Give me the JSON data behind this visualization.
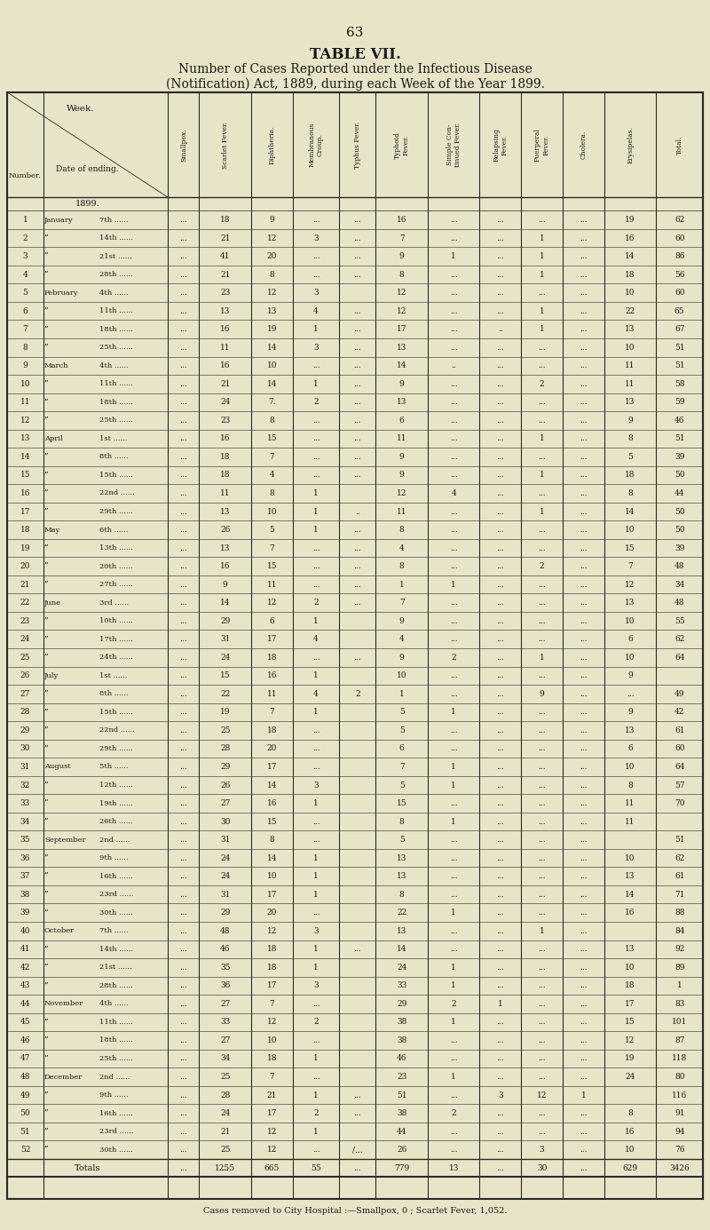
{
  "page_number": "63",
  "title_line1": "TABLE VII.",
  "title_line2": "Number of Cases Reported under the Infectious Disease",
  "title_line3": "(Notification) Act, 1889, during each Week of the Year 1899.",
  "footer": "Cases removed to City Hospital :—Smallpox, 0 ; Scarlet Fever, 1,052.",
  "col_headers": [
    "Number.",
    "Date of ending.",
    "Smallpox.",
    "Scarlet Fever.",
    "Diphtheria.",
    "Membranous Croup.",
    "Typhus Fever.",
    "Typhoid Fever.",
    "Simple Con-\ntinued Fever.",
    "Relapsing\nFever.",
    "Puerperal\nFever.",
    "Cholera.",
    "Erysipelas.",
    "Total."
  ],
  "rows": [
    [
      1,
      "January  7th",
      "...",
      18,
      9,
      "...",
      "...",
      16,
      "...",
      "...",
      "...",
      "...",
      19,
      62
    ],
    [
      2,
      "\"  14th",
      "...",
      21,
      12,
      3,
      "...",
      7,
      "...",
      "...",
      1,
      "...",
      16,
      60
    ],
    [
      3,
      "\"  21st",
      "...",
      41,
      20,
      "...",
      "...",
      9,
      1,
      "...",
      1,
      "...",
      14,
      86
    ],
    [
      4,
      "\"  28th",
      "...",
      21,
      8,
      "...",
      "...",
      8,
      "...",
      "...",
      1,
      "...",
      18,
      56
    ],
    [
      5,
      "February  4th",
      "...",
      23,
      12,
      3,
      "",
      12,
      "...",
      "...",
      "...",
      "...",
      10,
      60
    ],
    [
      6,
      "\"  11th",
      "...",
      13,
      13,
      4,
      "...",
      12,
      "...",
      "...",
      1,
      "...",
      22,
      65
    ],
    [
      7,
      "\"  18th",
      "...",
      16,
      19,
      1,
      "...",
      17,
      "...",
      "..",
      1,
      "...",
      13,
      67
    ],
    [
      8,
      "\"  25th",
      "...",
      11,
      14,
      3,
      "...",
      13,
      "...",
      "...",
      "...",
      "...",
      10,
      51
    ],
    [
      9,
      "March  4th",
      "...",
      16,
      10,
      "...",
      "...",
      14,
      "..",
      "...",
      "...",
      "...",
      11,
      51
    ],
    [
      10,
      "\"  11th",
      "...",
      21,
      14,
      1,
      "...",
      9,
      "...",
      "...",
      2,
      "...",
      11,
      58
    ],
    [
      11,
      "\"  18th",
      "...",
      24,
      "7.",
      2,
      "...",
      13,
      "...",
      "...",
      "...",
      "...",
      13,
      59
    ],
    [
      12,
      "\"  25th",
      "...",
      23,
      8,
      "...",
      "...",
      6,
      "...",
      "...",
      "...",
      "...",
      9,
      46
    ],
    [
      13,
      "April  1st",
      "...",
      16,
      15,
      "...",
      "...",
      11,
      "...",
      "...",
      1,
      "...",
      8,
      51
    ],
    [
      14,
      "\"  8th",
      "...",
      18,
      7,
      "...",
      "...",
      9,
      "...",
      "...",
      "...",
      "...",
      5,
      39
    ],
    [
      15,
      "\"  15th",
      "...",
      18,
      4,
      "...",
      "...",
      9,
      "...",
      "...",
      1,
      "...",
      18,
      50
    ],
    [
      16,
      "\"  22nd",
      "...",
      11,
      8,
      1,
      "",
      12,
      4,
      "...",
      "...",
      "...",
      8,
      44
    ],
    [
      17,
      "\"  29th",
      "...",
      13,
      10,
      1,
      "..",
      11,
      "...",
      "...",
      1,
      "...",
      14,
      50
    ],
    [
      18,
      "May  6th",
      "...",
      26,
      5,
      1,
      "...",
      8,
      "...",
      "...",
      "...",
      "...",
      10,
      50
    ],
    [
      19,
      "\"  13th",
      "...",
      13,
      7,
      "...",
      "...",
      4,
      "...",
      "...",
      "...",
      "...",
      15,
      39
    ],
    [
      20,
      "\"  20th",
      "...",
      16,
      15,
      "...",
      "...",
      8,
      "...",
      "...",
      2,
      "...",
      7,
      48
    ],
    [
      21,
      "\"  27th",
      "...",
      9,
      11,
      "...",
      "...",
      1,
      1,
      "...",
      "...",
      "...",
      12,
      34
    ],
    [
      22,
      "June  3rd",
      "...",
      14,
      12,
      2,
      "...",
      7,
      "...",
      "...",
      "...",
      "...",
      13,
      48
    ],
    [
      23,
      "\"  10th",
      "...",
      29,
      6,
      1,
      "",
      9,
      "...",
      "...",
      "...",
      "...",
      10,
      55
    ],
    [
      24,
      "\"  17th",
      "...",
      31,
      17,
      4,
      "",
      4,
      "...",
      "...",
      "...",
      "...",
      6,
      62
    ],
    [
      25,
      "\"  24th",
      "...",
      24,
      18,
      "...",
      "...",
      9,
      2,
      "...",
      1,
      "...",
      10,
      64
    ],
    [
      26,
      "July  1st",
      "...",
      15,
      16,
      1,
      "",
      10,
      "...",
      "...",
      "...",
      "...",
      9,
      ""
    ],
    [
      27,
      "\"  8th",
      "...",
      22,
      11,
      4,
      2,
      1,
      "...",
      "...",
      9,
      "...",
      "...",
      49
    ],
    [
      28,
      "\"  15th",
      "...",
      19,
      7,
      1,
      "",
      5,
      1,
      "...",
      "...",
      "...",
      9,
      42
    ],
    [
      29,
      "\"  22nd",
      "...",
      25,
      18,
      "...",
      "",
      5,
      "...",
      "...",
      "...",
      "...",
      13,
      61
    ],
    [
      30,
      "\"  29th",
      "...",
      28,
      20,
      "...",
      "",
      6,
      "...",
      "...",
      "...",
      "...",
      6,
      60
    ],
    [
      31,
      "August  5th",
      "...",
      29,
      17,
      "...",
      "",
      7,
      1,
      "...",
      "...",
      "...",
      10,
      64
    ],
    [
      32,
      "\"  12th",
      "...",
      26,
      14,
      3,
      "",
      5,
      1,
      "...",
      "...",
      "...",
      8,
      57
    ],
    [
      33,
      "\"  19th",
      "...",
      27,
      16,
      1,
      "",
      15,
      "...",
      "...",
      "...",
      "...",
      11,
      70
    ],
    [
      34,
      "\"  26th",
      "...",
      30,
      15,
      "...",
      "",
      8,
      1,
      "...",
      "...",
      "...",
      11,
      ""
    ],
    [
      35,
      "September  2nd",
      "...",
      31,
      8,
      "...",
      "",
      5,
      "...",
      "...",
      "...",
      "...",
      "",
      51
    ],
    [
      36,
      "\"  9th",
      "...",
      24,
      14,
      1,
      "",
      13,
      "...",
      "...",
      "...",
      "...",
      10,
      62
    ],
    [
      37,
      "\"  16th",
      "...",
      24,
      10,
      1,
      "",
      13,
      "...",
      "...",
      "...",
      "...",
      13,
      61
    ],
    [
      38,
      "\"  23rd",
      "...",
      31,
      17,
      1,
      "",
      8,
      "...",
      "...",
      "...",
      "...",
      14,
      71
    ],
    [
      39,
      "\"  30th",
      "...",
      29,
      20,
      "...",
      "",
      22,
      1,
      "...",
      "...",
      "...",
      16,
      88
    ],
    [
      40,
      "October  7th",
      "...",
      48,
      12,
      3,
      "",
      13,
      "...",
      "...",
      1,
      "...",
      "",
      84
    ],
    [
      41,
      "\"  14th",
      "...",
      46,
      18,
      1,
      "...",
      14,
      "...",
      "...",
      "...",
      "...",
      13,
      92
    ],
    [
      42,
      "\"  21st",
      "...",
      35,
      18,
      1,
      "",
      24,
      1,
      "...",
      "...",
      "...",
      10,
      89
    ],
    [
      43,
      "\"  28th",
      "...",
      36,
      17,
      3,
      "",
      33,
      1,
      "...",
      "...",
      "...",
      18,
      "1"
    ],
    [
      44,
      "November  4th",
      "...",
      27,
      7,
      "...",
      "",
      29,
      2,
      1,
      "...",
      "...",
      17,
      83
    ],
    [
      45,
      "\"  11th",
      "...",
      33,
      12,
      2,
      "",
      38,
      1,
      "...",
      "...",
      "...",
      15,
      101
    ],
    [
      46,
      "\"  18th",
      "...",
      27,
      10,
      "...",
      "",
      38,
      "...",
      "...",
      "...",
      "...",
      12,
      87
    ],
    [
      47,
      "\"  25th",
      "...",
      34,
      18,
      1,
      "",
      46,
      "...",
      "...",
      "...",
      "...",
      19,
      "118"
    ],
    [
      48,
      "December  2nd",
      "...",
      25,
      7,
      "...",
      "",
      23,
      1,
      "...",
      "...",
      "...",
      24,
      80
    ],
    [
      49,
      "\"  9th",
      "...",
      28,
      21,
      1,
      "...",
      51,
      "...",
      3,
      12,
      1,
      "",
      116
    ],
    [
      50,
      "\"  16th",
      "...",
      24,
      17,
      2,
      "...",
      38,
      2,
      "...",
      "...",
      "...",
      8,
      "91"
    ],
    [
      51,
      "\"  23rd",
      "...",
      21,
      12,
      1,
      "",
      44,
      "...",
      "...",
      "...",
      "...",
      16,
      "94"
    ],
    [
      52,
      "\"  30th",
      "...",
      25,
      12,
      "...",
      "/...",
      26,
      "...",
      "...",
      3,
      "...",
      10,
      76
    ]
  ],
  "totals_row": [
    "Totals",
    "...",
    "...",
    1255,
    665,
    55,
    "...",
    779,
    13,
    "...",
    30,
    "...",
    629,
    3426
  ],
  "bg_color": "#e8e4c8",
  "text_color": "#1a1a1a"
}
